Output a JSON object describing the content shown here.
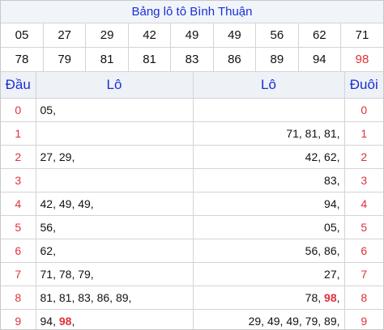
{
  "title": "Bảng lô tô Bình Thuận",
  "numbers_row1": [
    "05",
    "27",
    "29",
    "42",
    "49",
    "49",
    "56",
    "62",
    "71"
  ],
  "numbers_row2": [
    "78",
    "79",
    "81",
    "81",
    "83",
    "86",
    "89",
    "94",
    "98"
  ],
  "highlight": "98",
  "headers": {
    "dau": "Đầu",
    "lo_left": "Lô",
    "lo_right": "Lô",
    "duoi": "Đuôi"
  },
  "rows": [
    {
      "dau": "0",
      "left": [
        "05"
      ],
      "right": [],
      "duoi": "0"
    },
    {
      "dau": "1",
      "left": [],
      "right": [
        "71",
        "81",
        "81"
      ],
      "duoi": "1"
    },
    {
      "dau": "2",
      "left": [
        "27",
        "29"
      ],
      "right": [
        "42",
        "62"
      ],
      "duoi": "2"
    },
    {
      "dau": "3",
      "left": [],
      "right": [
        "83"
      ],
      "duoi": "3"
    },
    {
      "dau": "4",
      "left": [
        "42",
        "49",
        "49"
      ],
      "right": [
        "94"
      ],
      "duoi": "4"
    },
    {
      "dau": "5",
      "left": [
        "56"
      ],
      "right": [
        "05"
      ],
      "duoi": "5"
    },
    {
      "dau": "6",
      "left": [
        "62"
      ],
      "right": [
        "56",
        "86"
      ],
      "duoi": "6"
    },
    {
      "dau": "7",
      "left": [
        "71",
        "78",
        "79"
      ],
      "right": [
        "27"
      ],
      "duoi": "7"
    },
    {
      "dau": "8",
      "left": [
        "81",
        "81",
        "83",
        "86",
        "89"
      ],
      "right": [
        "78",
        "98"
      ],
      "duoi": "8"
    },
    {
      "dau": "9",
      "left": [
        "94",
        "98"
      ],
      "right": [
        "29",
        "49",
        "49",
        "79",
        "89"
      ],
      "duoi": "9"
    }
  ]
}
